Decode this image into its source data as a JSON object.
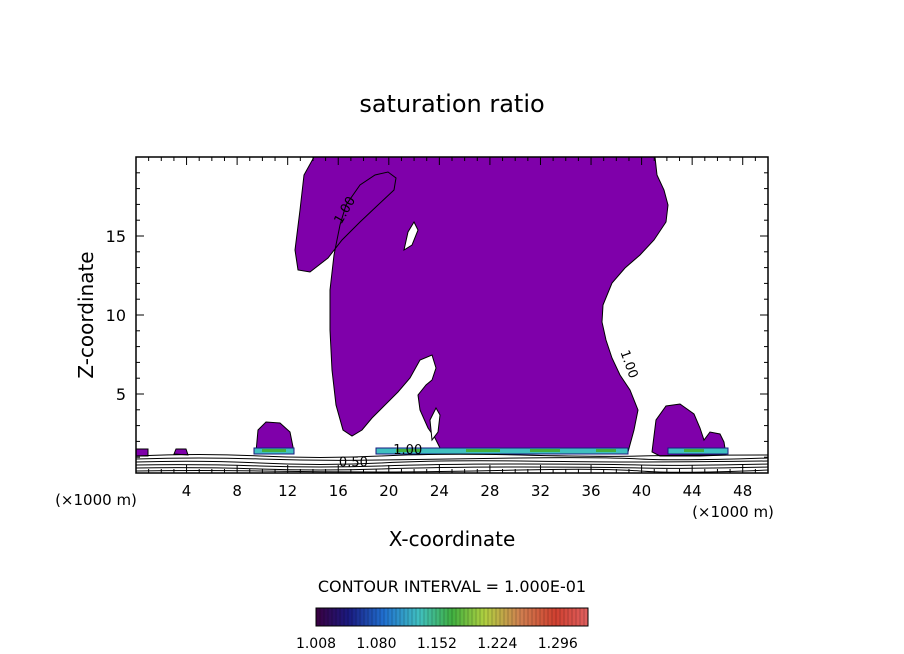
{
  "chart_data": {
    "type": "contour",
    "title": "saturation ratio",
    "xlabel": "X-coordinate",
    "ylabel": "Z-coordinate",
    "x_unit_left": "(×1000 m)",
    "x_unit_right": "(×1000 m)",
    "xlim": [
      0,
      50
    ],
    "ylim": [
      0,
      20
    ],
    "x_ticks": [
      4,
      8,
      12,
      16,
      20,
      24,
      28,
      32,
      36,
      40,
      44,
      48
    ],
    "y_ticks": [
      5,
      10,
      15
    ],
    "contour_labels": [
      {
        "text": "1.00",
        "x": 16.8,
        "y": 16.5,
        "angle": -60
      },
      {
        "text": "1.00",
        "x": 38.7,
        "y": 6.8,
        "angle": 70
      },
      {
        "text": "1.00",
        "x": 21.5,
        "y": 1.2,
        "angle": 0
      },
      {
        "text": "0.50",
        "x": 17.2,
        "y": 0.4,
        "angle": 0
      }
    ],
    "contour_interval_text": "CONTOUR INTERVAL = 1.000E-01",
    "colorbar": {
      "min": 1.008,
      "max": 1.332,
      "tick_labels": [
        "1.008",
        "1.080",
        "1.152",
        "1.224",
        "1.296"
      ]
    },
    "fill_color": "#7f00aa",
    "colors": {
      "background": "#ffffff",
      "axes": "#000000",
      "fill": "#7f00aa"
    }
  }
}
